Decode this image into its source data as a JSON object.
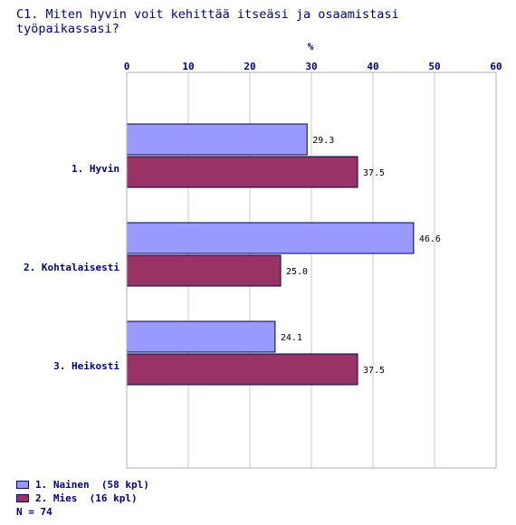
{
  "title": "C1. Miten hyvin voit kehittää itseäsi ja osaamistasi työpaikassasi?",
  "chart_data": {
    "type": "bar",
    "orientation": "horizontal",
    "xlabel": "%",
    "xlim": [
      0,
      60
    ],
    "ticks": [
      "0",
      "10",
      "20",
      "30",
      "40",
      "50",
      "60"
    ],
    "categories": [
      "1. Hyvin",
      "2. Kohtalaisesti",
      "3. Heikosti"
    ],
    "series": [
      {
        "name": "1. Nainen  (58 kpl)",
        "color": "#9999ff",
        "values": [
          29.3,
          46.6,
          24.1
        ],
        "labels": [
          "29.3",
          "46.6",
          "24.1"
        ]
      },
      {
        "name": "2. Mies  (16 kpl)",
        "color": "#993366",
        "values": [
          37.5,
          25.0,
          37.5
        ],
        "labels": [
          "37.5",
          "25.0",
          "37.5"
        ]
      }
    ],
    "grid": true,
    "legend_position": "bottom-left"
  },
  "footer": {
    "n": "N = 74"
  }
}
